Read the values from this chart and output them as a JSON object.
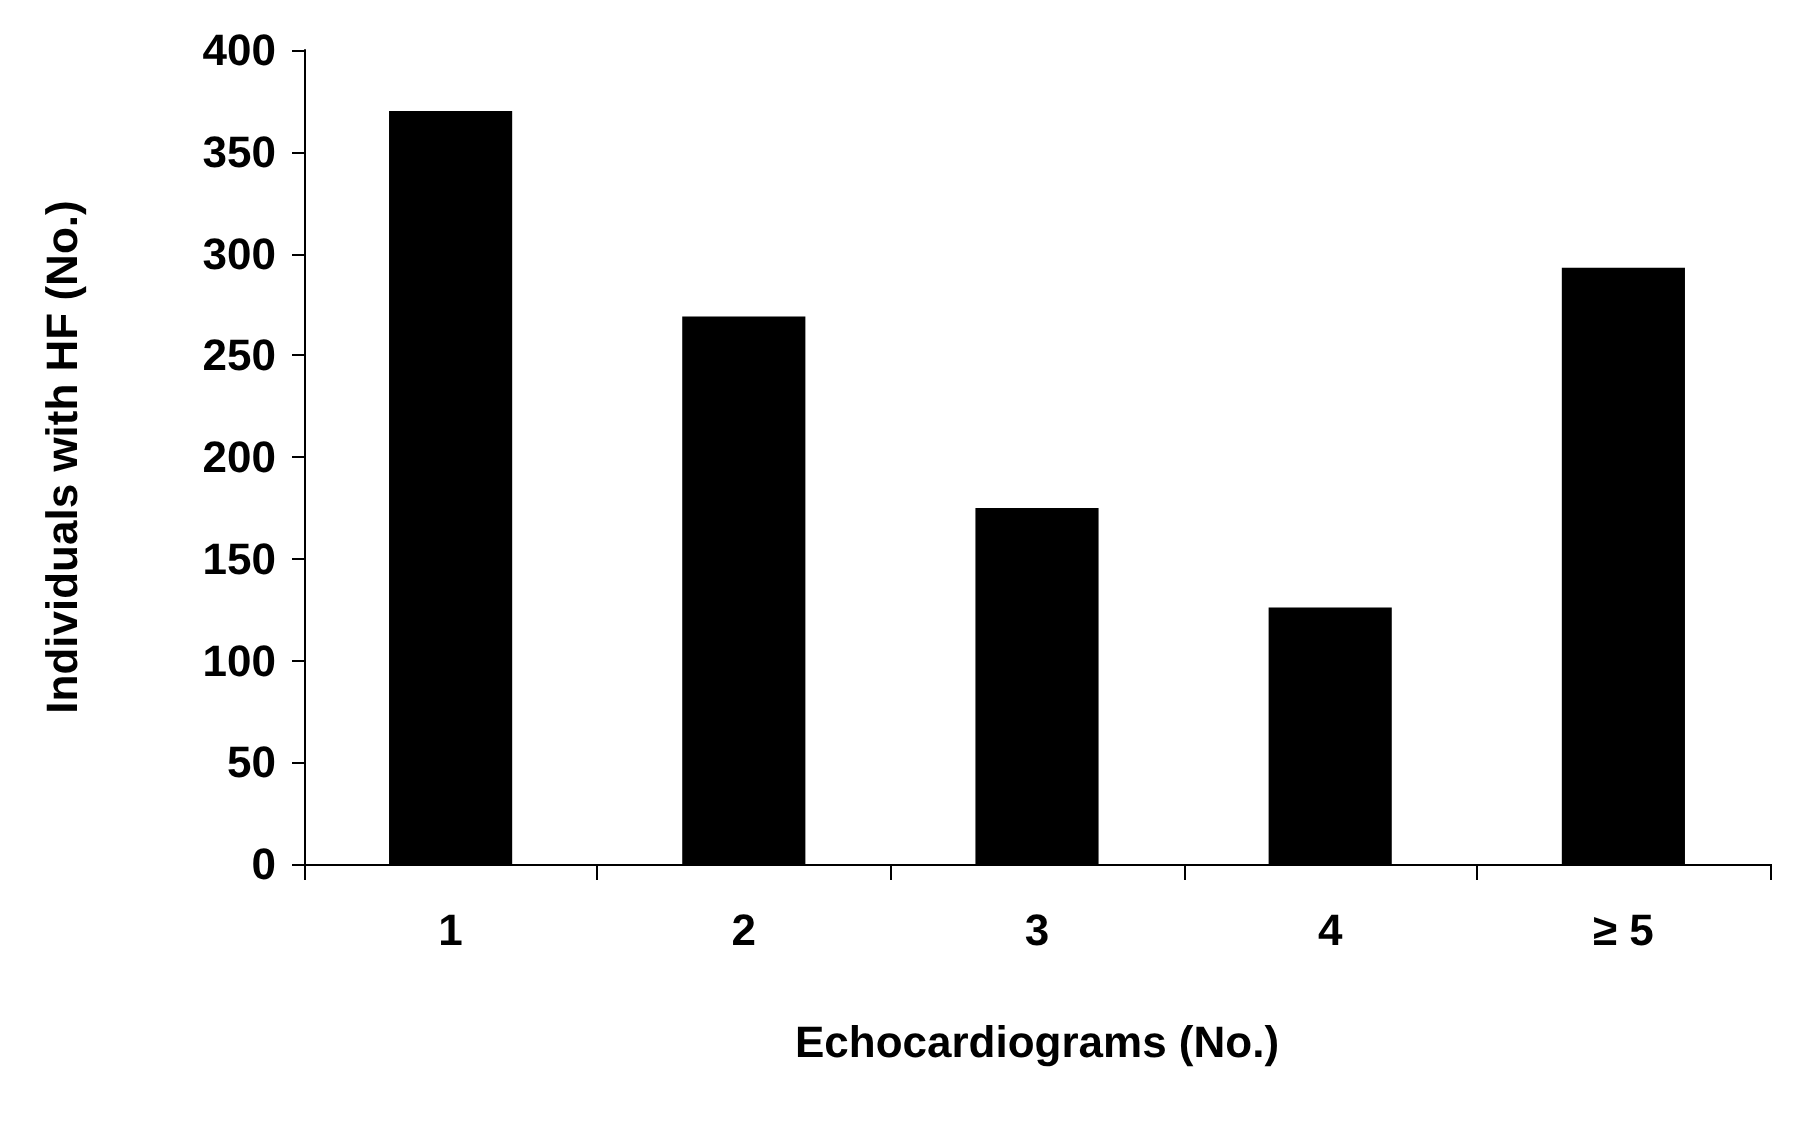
{
  "chart_data": {
    "type": "bar",
    "xlabel": "Echocardiograms (No.)",
    "ylabel": "Individuals with HF (No.)",
    "categories": [
      "1",
      "2",
      "3",
      "4",
      "≥ 5"
    ],
    "values": [
      370,
      269,
      175,
      126,
      293
    ],
    "color": "#000000",
    "ylim": [
      0,
      400
    ],
    "yticks": [
      0,
      50,
      100,
      150,
      200,
      250,
      300,
      350,
      400
    ],
    "grid": false
  }
}
